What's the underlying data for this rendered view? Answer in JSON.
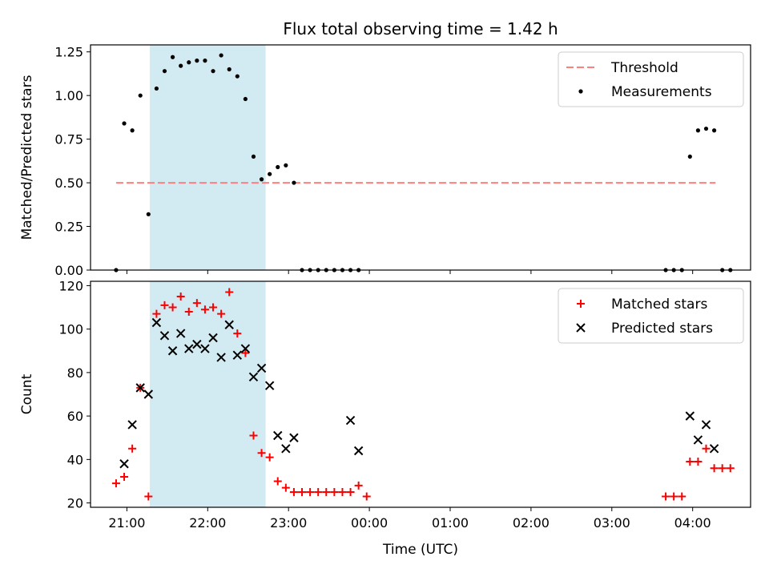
{
  "figure": {
    "title": "Flux total observing time = 1.42 h"
  },
  "chart_data": [
    {
      "type": "scatter",
      "panel": "top",
      "title": "Flux total observing time = 1.42 h",
      "xlabel": "",
      "ylabel": "Matched/Predicted stars",
      "x_axis_unit": "time (UTC)",
      "xlim": [
        "20:33",
        "04:43"
      ],
      "ylim": [
        0,
        1.29
      ],
      "yticks": [
        "0.00",
        "0.25",
        "0.50",
        "0.75",
        "1.00",
        "1.25"
      ],
      "grid": false,
      "legend_position": "top-right",
      "shaded_span": {
        "start": "21:17",
        "end": "22:43",
        "color": "#add8e6"
      },
      "series": [
        {
          "name": "Threshold",
          "kind": "dashed-line",
          "color": "#ff7f7f",
          "x": [
            "20:52",
            "04:17"
          ],
          "y": [
            0.5,
            0.5
          ]
        },
        {
          "name": "Measurements",
          "kind": "dots",
          "color": "#000000",
          "x": [
            "20:52",
            "20:58",
            "21:04",
            "21:10",
            "21:16",
            "21:22",
            "21:28",
            "21:34",
            "21:40",
            "21:46",
            "21:52",
            "21:58",
            "22:04",
            "22:10",
            "22:16",
            "22:22",
            "22:28",
            "22:34",
            "22:40",
            "22:46",
            "22:52",
            "22:58",
            "23:04",
            "23:10",
            "23:16",
            "23:22",
            "23:28",
            "23:34",
            "23:40",
            "23:46",
            "23:52",
            "03:40",
            "03:46",
            "03:52",
            "03:58",
            "04:04",
            "04:10",
            "04:16",
            "04:22",
            "04:28"
          ],
          "y": [
            0.0,
            0.84,
            0.8,
            1.0,
            0.32,
            1.04,
            1.14,
            1.22,
            1.17,
            1.19,
            1.2,
            1.2,
            1.14,
            1.23,
            1.15,
            1.11,
            0.98,
            0.65,
            0.52,
            0.55,
            0.59,
            0.6,
            0.5,
            0.0,
            0.0,
            0.0,
            0.0,
            0.0,
            0.0,
            0.0,
            0.0,
            0.0,
            0.0,
            0.0,
            0.65,
            0.8,
            0.81,
            0.8,
            0.0,
            0.0
          ]
        }
      ]
    },
    {
      "type": "scatter",
      "panel": "bottom",
      "xlabel": "Time (UTC)",
      "ylabel": "Count",
      "xlim": [
        "20:33",
        "04:43"
      ],
      "ylim": [
        18,
        122
      ],
      "xticks": [
        "21:00",
        "22:00",
        "23:00",
        "00:00",
        "01:00",
        "02:00",
        "03:00",
        "04:00"
      ],
      "yticks": [
        "20",
        "40",
        "60",
        "80",
        "100",
        "120"
      ],
      "grid": false,
      "legend_position": "top-right",
      "shaded_span": {
        "start": "21:17",
        "end": "22:43",
        "color": "#add8e6"
      },
      "series": [
        {
          "name": "Matched stars",
          "marker": "plus",
          "color": "#ff0000",
          "x": [
            "20:52",
            "20:58",
            "21:04",
            "21:10",
            "21:16",
            "21:22",
            "21:28",
            "21:34",
            "21:40",
            "21:46",
            "21:52",
            "21:58",
            "22:04",
            "22:10",
            "22:16",
            "22:22",
            "22:28",
            "22:34",
            "22:40",
            "22:46",
            "22:52",
            "22:58",
            "23:04",
            "23:10",
            "23:16",
            "23:22",
            "23:28",
            "23:34",
            "23:40",
            "23:46",
            "23:52",
            "23:58",
            "03:40",
            "03:46",
            "03:52",
            "03:58",
            "04:04",
            "04:10",
            "04:16",
            "04:22",
            "04:28"
          ],
          "y": [
            29,
            32,
            45,
            73,
            23,
            107,
            111,
            110,
            115,
            108,
            112,
            109,
            110,
            107,
            117,
            98,
            89,
            51,
            43,
            41,
            30,
            27,
            25,
            25,
            25,
            25,
            25,
            25,
            25,
            25,
            28,
            23,
            23,
            23,
            23,
            39,
            39,
            45,
            36,
            36,
            36
          ]
        },
        {
          "name": "Predicted stars",
          "marker": "x",
          "color": "#000000",
          "x": [
            "20:58",
            "21:04",
            "21:10",
            "21:16",
            "21:22",
            "21:28",
            "21:34",
            "21:40",
            "21:46",
            "21:52",
            "21:58",
            "22:04",
            "22:10",
            "22:16",
            "22:22",
            "22:28",
            "22:34",
            "22:40",
            "22:46",
            "22:52",
            "22:58",
            "23:04",
            "23:46",
            "23:52",
            "03:58",
            "04:04",
            "04:10",
            "04:16"
          ],
          "y": [
            38,
            56,
            73,
            70,
            103,
            97,
            90,
            98,
            91,
            93,
            91,
            96,
            87,
            102,
            88,
            91,
            78,
            82,
            74,
            51,
            45,
            50,
            58,
            44,
            60,
            49,
            56,
            45
          ]
        }
      ]
    }
  ]
}
